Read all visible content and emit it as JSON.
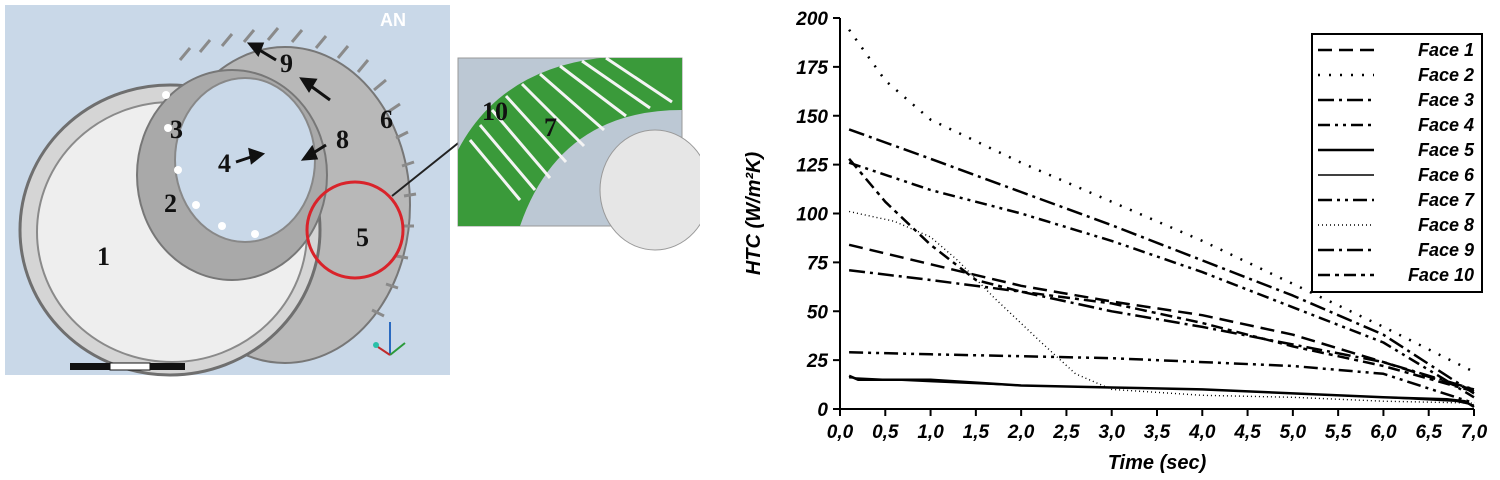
{
  "figure": {
    "left_image": {
      "watermark": "AN",
      "face_labels": [
        "1",
        "2",
        "3",
        "4",
        "5",
        "6",
        "7",
        "8",
        "9",
        "10"
      ],
      "colors": {
        "highlight_circle": "#d9232a",
        "fins_green": "#3a9a3a",
        "background": "#c9d8e8"
      }
    }
  },
  "chart_data": {
    "type": "line",
    "xlabel": "Time (sec)",
    "ylabel": "HTC (W/m²K)",
    "xlim": [
      0,
      7
    ],
    "ylim": [
      0,
      200
    ],
    "x_ticks": [
      "0,0",
      "0,5",
      "1,0",
      "1,5",
      "2,0",
      "2,5",
      "3,0",
      "3,5",
      "4,0",
      "4,5",
      "5,0",
      "5,5",
      "6,0",
      "6,5",
      "7,0"
    ],
    "y_ticks": [
      "0",
      "25",
      "50",
      "75",
      "100",
      "125",
      "150",
      "175",
      "200"
    ],
    "legend_position": "top-right",
    "grid": false,
    "series": [
      {
        "name": "Face 1",
        "dash": "14,7",
        "width": 2.5,
        "x": [
          0.1,
          1,
          2,
          3,
          4,
          5,
          6,
          6.8,
          7
        ],
        "y": [
          84,
          74,
          63,
          55,
          48,
          38,
          24,
          12,
          10
        ]
      },
      {
        "name": "Face 2",
        "dash": "2,9",
        "width": 2.5,
        "x": [
          0.1,
          0.5,
          1,
          2,
          3,
          4,
          5,
          6,
          7
        ],
        "y": [
          194,
          168,
          148,
          126,
          106,
          86,
          64,
          42,
          19
        ]
      },
      {
        "name": "Face 3",
        "dash": "16,5,3,5",
        "width": 2.5,
        "x": [
          0.1,
          1,
          2,
          3,
          4,
          5,
          6,
          7
        ],
        "y": [
          143,
          128,
          111,
          94,
          76,
          58,
          38,
          8
        ]
      },
      {
        "name": "Face 4",
        "dash": "12,5,3,5,3,5",
        "width": 2.5,
        "x": [
          0.1,
          1,
          2,
          3,
          4,
          5,
          6,
          7
        ],
        "y": [
          126,
          112,
          100,
          86,
          70,
          52,
          34,
          6
        ]
      },
      {
        "name": "Face 5",
        "dash": "",
        "width": 2.5,
        "x": [
          0.1,
          0.2,
          1,
          2,
          3,
          4,
          5,
          6,
          6.7,
          6.9,
          7
        ],
        "y": [
          17,
          15,
          15,
          12,
          11,
          10,
          8,
          6,
          5,
          4,
          1
        ]
      },
      {
        "name": "Face 6",
        "dash": "",
        "width": 1.6,
        "x": [
          0.1,
          1,
          2,
          3,
          4,
          5,
          6,
          6.8,
          7
        ],
        "y": [
          16,
          14,
          12,
          11,
          10,
          8,
          6,
          4,
          2
        ]
      },
      {
        "name": "Face 7",
        "dash": "14,5,3,5,3,5",
        "width": 2.5,
        "x": [
          0.1,
          1,
          2,
          3,
          4,
          5,
          6,
          7
        ],
        "y": [
          29,
          28,
          27,
          26,
          24,
          22,
          18,
          3
        ]
      },
      {
        "name": "Face 8",
        "dash": "1,3",
        "width": 1.4,
        "x": [
          0.1,
          0.6,
          1,
          1.3,
          1.7,
          2.2,
          2.6,
          3,
          4,
          5,
          6,
          7
        ],
        "y": [
          101,
          96,
          88,
          76,
          57,
          35,
          18,
          10,
          7,
          6,
          4,
          3
        ]
      },
      {
        "name": "Face 9",
        "dash": "16,5,3,5",
        "width": 2.5,
        "x": [
          0.1,
          1,
          2,
          3,
          4,
          5,
          6,
          7
        ],
        "y": [
          71,
          66,
          60,
          50,
          42,
          33,
          24,
          10
        ]
      },
      {
        "name": "Face 10",
        "dash": "12,5,4,5",
        "width": 2.5,
        "x": [
          0.1,
          0.5,
          1,
          1.5,
          2,
          3,
          4,
          5,
          6,
          7
        ],
        "y": [
          128,
          106,
          84,
          66,
          60,
          54,
          44,
          32,
          22,
          9
        ]
      }
    ]
  }
}
